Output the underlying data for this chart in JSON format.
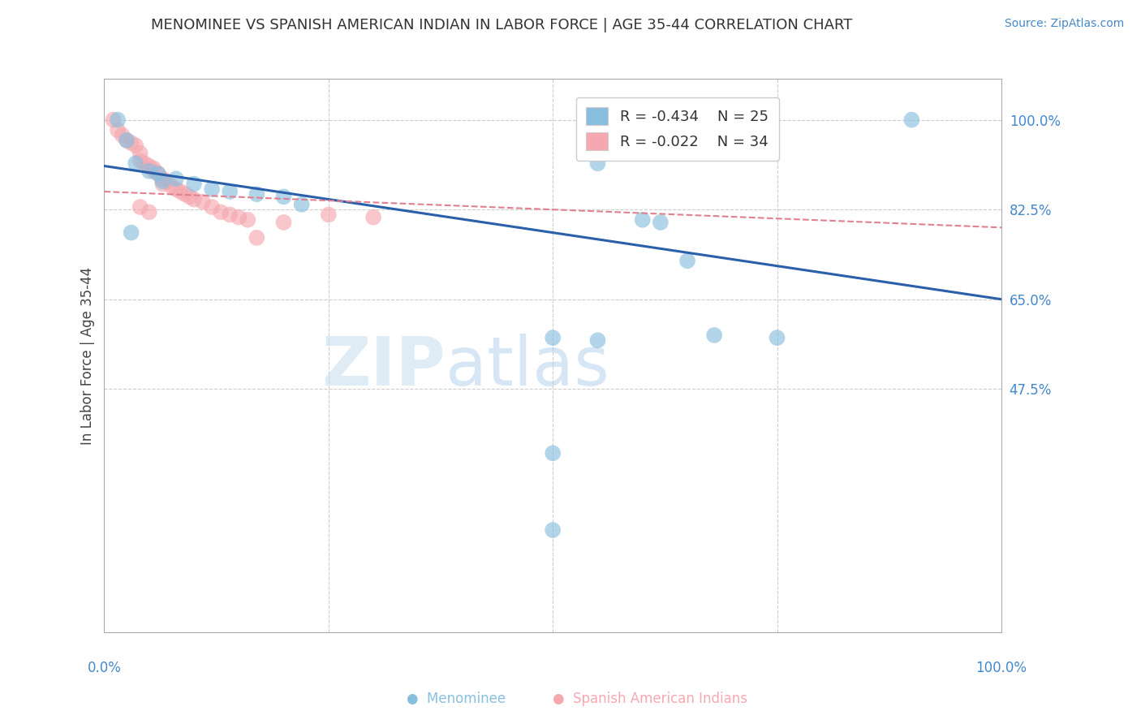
{
  "title": "MENOMINEE VS SPANISH AMERICAN INDIAN IN LABOR FORCE | AGE 35-44 CORRELATION CHART",
  "source_text": "Source: ZipAtlas.com",
  "ylabel": "In Labor Force | Age 35-44",
  "ylabel_right_ticks": [
    100.0,
    82.5,
    65.0,
    47.5
  ],
  "ylim": [
    0.0,
    108.0
  ],
  "xlim": [
    0.0,
    100.0
  ],
  "legend_r1": "-0.434",
  "legend_n1": "25",
  "legend_r2": "-0.022",
  "legend_n2": "34",
  "blue_color": "#89bfde",
  "pink_color": "#f5a8b0",
  "trend_blue": "#2a5faa",
  "trend_pink": "#e08090",
  "watermark_zip": "ZIP",
  "watermark_atlas": "atlas",
  "blue_scatter": [
    [
      1.5,
      100.0
    ],
    [
      2.5,
      96.0
    ],
    [
      3.5,
      91.5
    ],
    [
      5.0,
      90.0
    ],
    [
      6.0,
      89.5
    ],
    [
      6.5,
      88.0
    ],
    [
      8.0,
      88.5
    ],
    [
      10.0,
      87.5
    ],
    [
      12.0,
      86.5
    ],
    [
      14.0,
      86.0
    ],
    [
      17.0,
      85.5
    ],
    [
      20.0,
      85.0
    ],
    [
      22.0,
      83.5
    ],
    [
      55.0,
      91.5
    ],
    [
      60.0,
      80.5
    ],
    [
      62.0,
      80.0
    ],
    [
      65.0,
      72.5
    ],
    [
      68.0,
      58.0
    ],
    [
      75.0,
      57.5
    ],
    [
      90.0,
      100.0
    ],
    [
      50.0,
      57.5
    ],
    [
      55.0,
      57.0
    ],
    [
      50.0,
      35.0
    ],
    [
      50.0,
      20.0
    ],
    [
      3.0,
      78.0
    ]
  ],
  "pink_scatter": [
    [
      1.0,
      100.0
    ],
    [
      1.5,
      98.0
    ],
    [
      2.0,
      97.0
    ],
    [
      2.5,
      96.0
    ],
    [
      3.0,
      95.5
    ],
    [
      3.5,
      95.0
    ],
    [
      4.0,
      93.5
    ],
    [
      4.0,
      92.0
    ],
    [
      4.5,
      91.5
    ],
    [
      5.0,
      91.0
    ],
    [
      5.5,
      90.5
    ],
    [
      5.5,
      90.0
    ],
    [
      6.0,
      89.5
    ],
    [
      6.5,
      88.5
    ],
    [
      6.5,
      87.5
    ],
    [
      7.0,
      88.0
    ],
    [
      7.5,
      87.0
    ],
    [
      8.0,
      86.5
    ],
    [
      8.5,
      86.0
    ],
    [
      9.0,
      85.5
    ],
    [
      9.5,
      85.0
    ],
    [
      10.0,
      84.5
    ],
    [
      11.0,
      84.0
    ],
    [
      12.0,
      83.0
    ],
    [
      13.0,
      82.0
    ],
    [
      14.0,
      81.5
    ],
    [
      15.0,
      81.0
    ],
    [
      16.0,
      80.5
    ],
    [
      20.0,
      80.0
    ],
    [
      25.0,
      81.5
    ],
    [
      30.0,
      81.0
    ],
    [
      17.0,
      77.0
    ],
    [
      5.0,
      82.0
    ],
    [
      4.0,
      83.0
    ]
  ],
  "blue_trend_x": [
    0.0,
    100.0
  ],
  "blue_trend_y": [
    91.0,
    65.0
  ],
  "pink_trend_x": [
    0.0,
    100.0
  ],
  "pink_trend_y": [
    86.0,
    79.0
  ],
  "background_color": "#ffffff",
  "grid_color": "#cccccc",
  "title_color": "#333333",
  "axis_label_color": "#444444",
  "right_tick_color": "#4488cc",
  "source_color": "#4488cc",
  "bottom_tick_color": "#4488cc"
}
